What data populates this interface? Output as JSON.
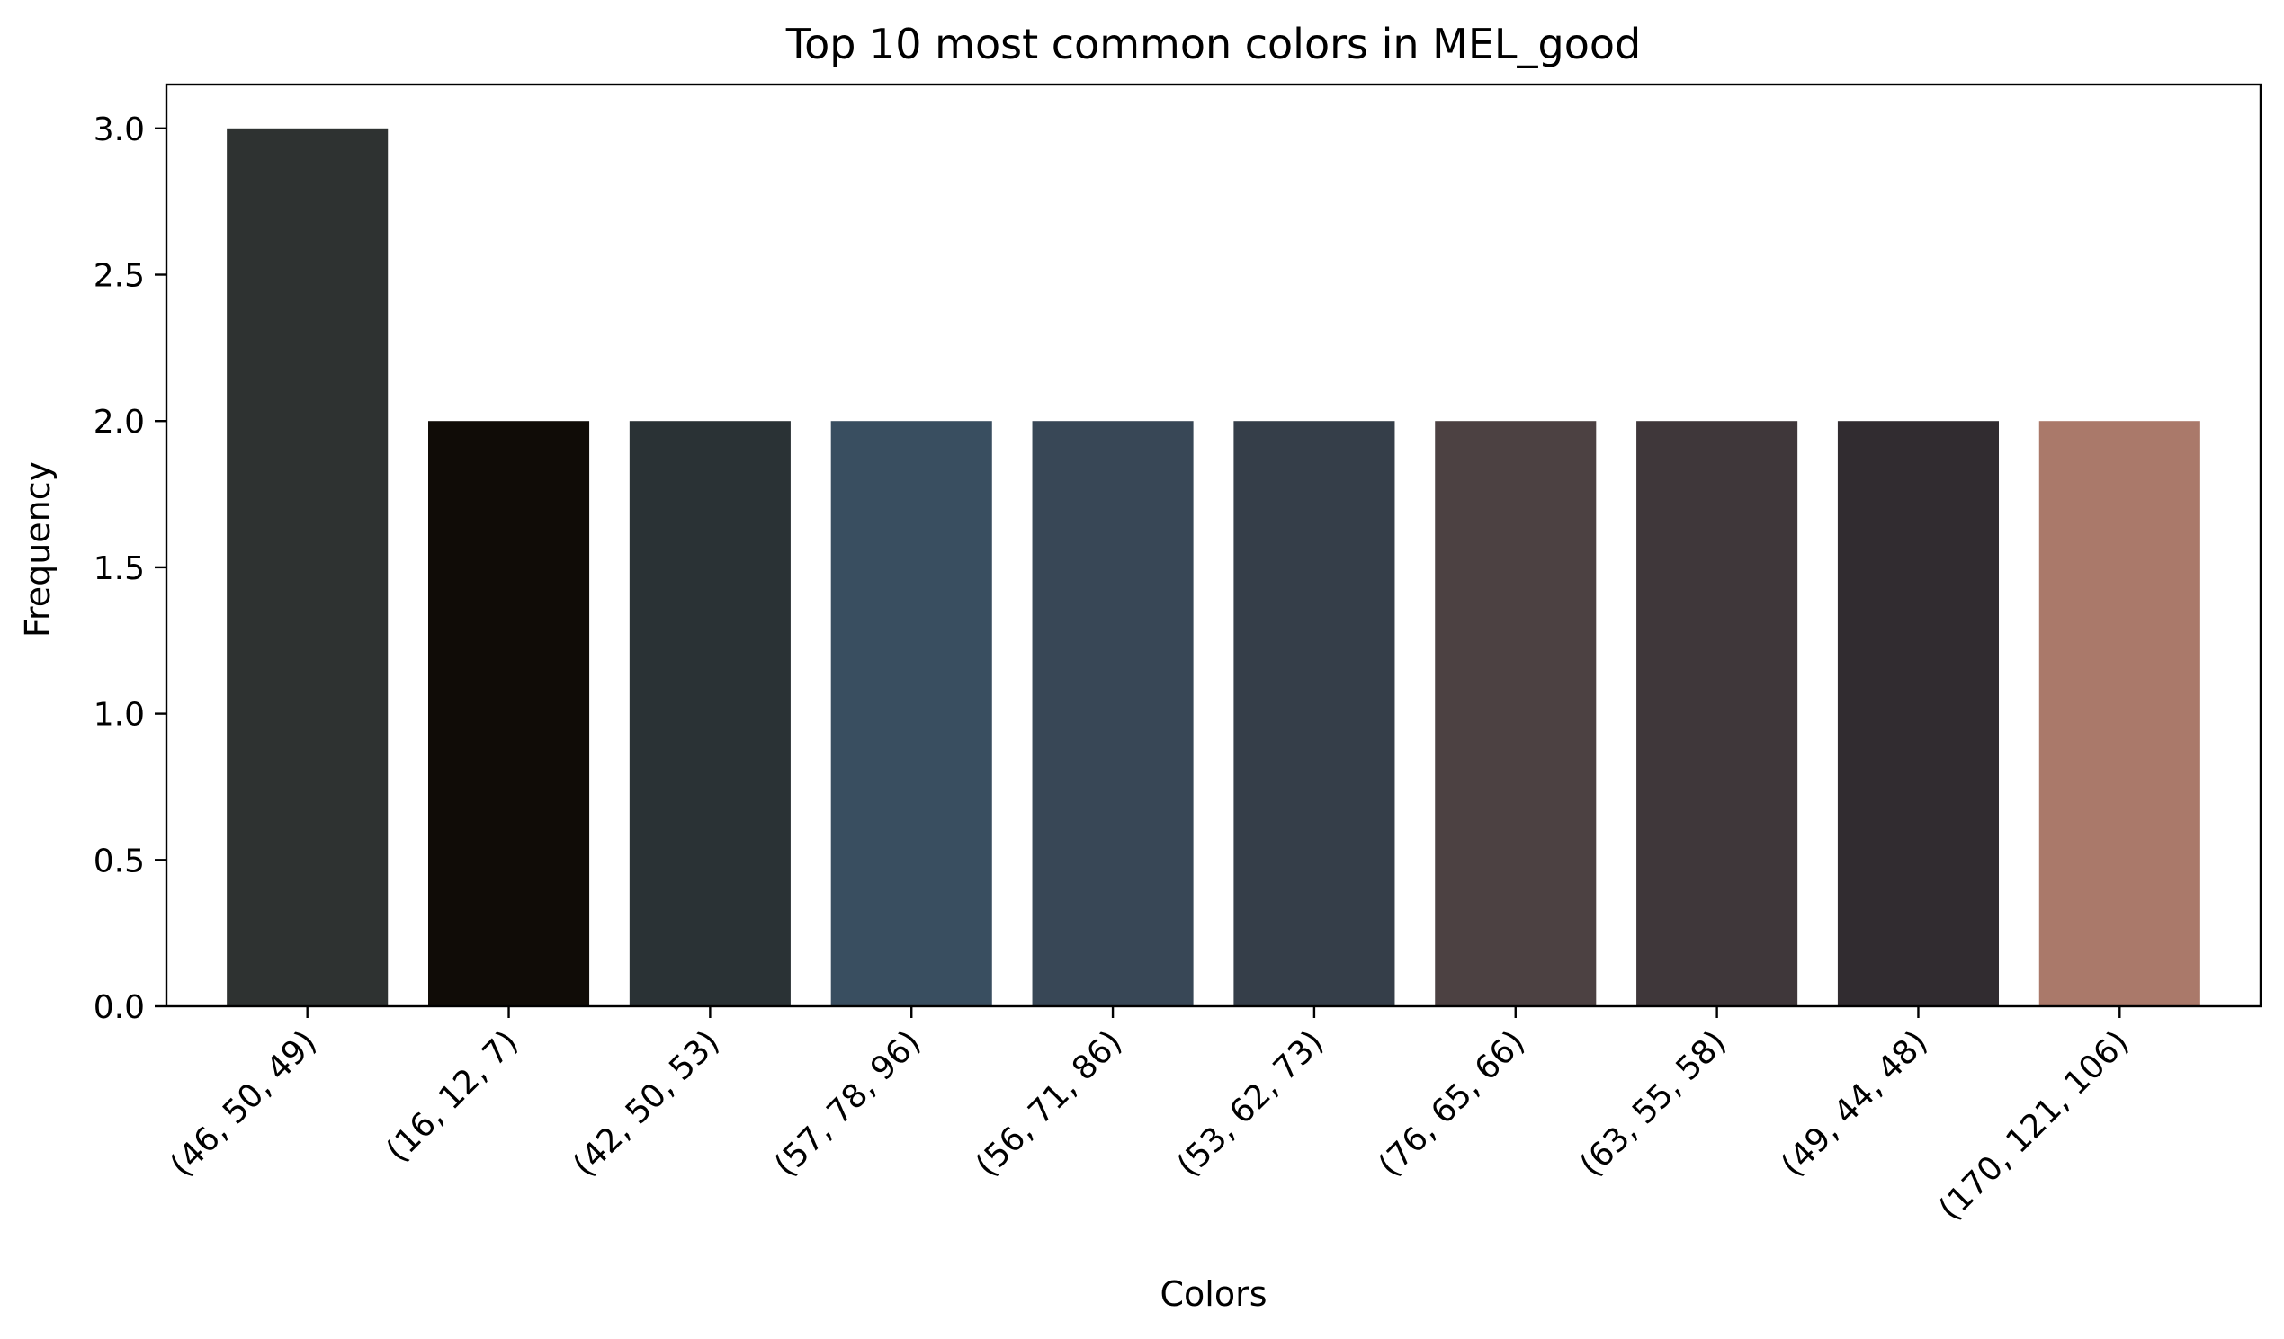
{
  "chart_data": {
    "type": "bar",
    "title": "Top 10 most common colors in MEL_good",
    "xlabel": "Colors",
    "ylabel": "Frequency",
    "ylim": [
      0,
      3.15
    ],
    "yticks": [
      0.0,
      0.5,
      1.0,
      1.5,
      2.0,
      2.5,
      3.0
    ],
    "ytick_labels": [
      "0.0",
      "0.5",
      "1.0",
      "1.5",
      "2.0",
      "2.5",
      "3.0"
    ],
    "grid": false,
    "categories": [
      "(46, 50, 49)",
      "(16, 12, 7)",
      "(42, 50, 53)",
      "(57, 78, 96)",
      "(56, 71, 86)",
      "(53, 62, 73)",
      "(76, 65, 66)",
      "(63, 55, 58)",
      "(49, 44, 48)",
      "(170, 121, 106)"
    ],
    "values": [
      3,
      2,
      2,
      2,
      2,
      2,
      2,
      2,
      2,
      2
    ],
    "colors": [
      "#2e3231",
      "#100c07",
      "#2a3235",
      "#394e60",
      "#384756",
      "#353e49",
      "#4c4142",
      "#3f373a",
      "#312c30",
      "#aa796a"
    ]
  }
}
